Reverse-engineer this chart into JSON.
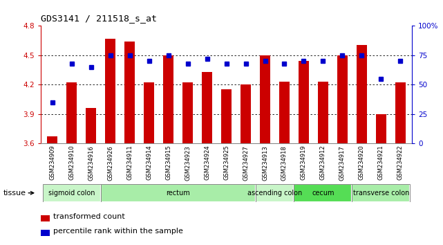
{
  "title": "GDS3141 / 211518_s_at",
  "samples": [
    "GSM234909",
    "GSM234910",
    "GSM234916",
    "GSM234926",
    "GSM234911",
    "GSM234914",
    "GSM234915",
    "GSM234923",
    "GSM234924",
    "GSM234925",
    "GSM234927",
    "GSM234913",
    "GSM234918",
    "GSM234919",
    "GSM234912",
    "GSM234917",
    "GSM234920",
    "GSM234921",
    "GSM234922"
  ],
  "bar_values": [
    3.67,
    4.22,
    3.96,
    4.67,
    4.64,
    4.22,
    4.5,
    4.22,
    4.33,
    4.15,
    4.2,
    4.5,
    4.23,
    4.44,
    4.23,
    4.5,
    4.6,
    3.9,
    4.22
  ],
  "percentile_values": [
    35,
    68,
    65,
    75,
    75,
    70,
    75,
    68,
    72,
    68,
    68,
    70,
    68,
    70,
    70,
    75,
    75,
    55,
    70
  ],
  "bar_color": "#cc0000",
  "dot_color": "#0000cc",
  "ylim_left": [
    3.6,
    4.8
  ],
  "ylim_right": [
    0,
    100
  ],
  "yticks_left": [
    3.6,
    3.9,
    4.2,
    4.5,
    4.8
  ],
  "yticks_right": [
    0,
    25,
    50,
    75,
    100
  ],
  "ytick_labels_left": [
    "3.6",
    "3.9",
    "4.2",
    "4.5",
    "4.8"
  ],
  "ytick_labels_right": [
    "0",
    "25",
    "50",
    "75",
    "100%"
  ],
  "gridlines": [
    3.9,
    4.2,
    4.5
  ],
  "tissue_groups": [
    {
      "label": "sigmoid colon",
      "start": 0,
      "end": 2,
      "color": "#c8f5c8"
    },
    {
      "label": "rectum",
      "start": 3,
      "end": 10,
      "color": "#a8eda8"
    },
    {
      "label": "ascending colon",
      "start": 11,
      "end": 12,
      "color": "#c8f5c8"
    },
    {
      "label": "cecum",
      "start": 13,
      "end": 15,
      "color": "#55dd55"
    },
    {
      "label": "transverse colon",
      "start": 16,
      "end": 18,
      "color": "#a8eda8"
    }
  ],
  "legend_bar_label": "transformed count",
  "legend_dot_label": "percentile rank within the sample",
  "tissue_label": "tissue"
}
